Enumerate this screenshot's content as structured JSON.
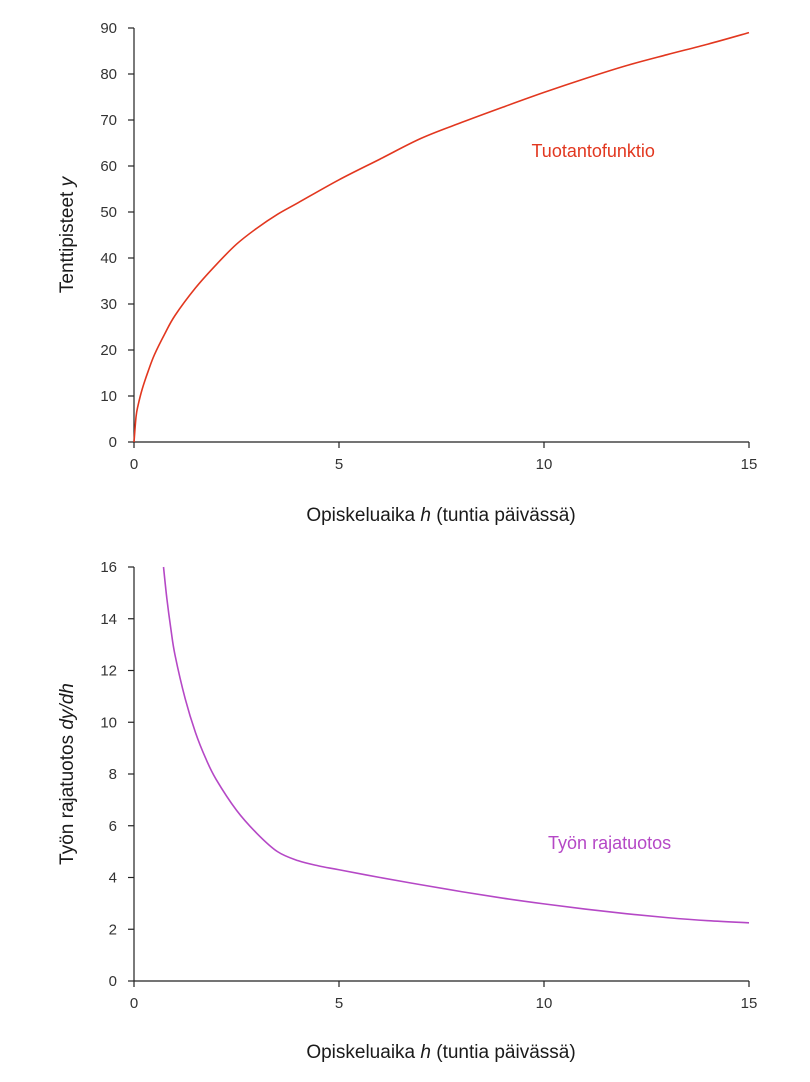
{
  "chart_data": [
    {
      "type": "line",
      "xlabel_prefix": "Opiskeluaika ",
      "xlabel_var": "h",
      "xlabel_suffix": " (tuntia päivässä)",
      "ylabel_prefix": "Tenttipisteet ",
      "ylabel_var": "y",
      "ylabel_suffix": "",
      "xlim": [
        0,
        15
      ],
      "ylim": [
        0,
        90
      ],
      "xticks": [
        0,
        5,
        10,
        15
      ],
      "yticks": [
        0,
        10,
        20,
        30,
        40,
        50,
        60,
        70,
        80,
        90
      ],
      "series": [
        {
          "name": "Tuotantofunktio",
          "color": "#e2371f",
          "x": [
            0,
            0.05,
            0.1,
            0.2,
            0.35,
            0.5,
            0.75,
            1,
            1.5,
            2,
            2.5,
            3,
            3.5,
            4,
            5,
            6,
            7,
            8,
            9,
            10,
            11,
            12,
            13,
            14,
            15
          ],
          "y": [
            0,
            5.5,
            8,
            11.5,
            15.5,
            19,
            23.5,
            27.5,
            33.5,
            38.5,
            43,
            46.5,
            49.5,
            52,
            57,
            61.5,
            66,
            69.5,
            72.8,
            76,
            79,
            81.8,
            84.2,
            86.5,
            89
          ]
        }
      ],
      "annotations": [
        {
          "text": "Tuotantofunktio",
          "x": 11.2,
          "y": 62
        }
      ]
    },
    {
      "type": "line",
      "xlabel_prefix": "Opiskeluaika ",
      "xlabel_var": "h",
      "xlabel_suffix": " (tuntia päivässä)",
      "ylabel_prefix": "Työn rajatuotos ",
      "ylabel_var": "dy/dh",
      "ylabel_suffix": "",
      "xlim": [
        0,
        15
      ],
      "ylim": [
        0,
        16
      ],
      "xticks": [
        0,
        5,
        10,
        15
      ],
      "yticks": [
        0,
        2,
        4,
        6,
        8,
        10,
        12,
        14,
        16
      ],
      "series": [
        {
          "name": "Työn rajatuotos",
          "color": "#b548c6",
          "x": [
            0.72,
            0.8,
            0.9,
            1,
            1.25,
            1.5,
            1.75,
            2,
            2.5,
            3,
            3.5,
            4,
            4.5,
            5,
            6,
            7,
            8,
            9,
            10,
            11,
            12,
            13,
            14,
            15
          ],
          "y": [
            16,
            14.8,
            13.6,
            12.6,
            10.9,
            9.6,
            8.6,
            7.8,
            6.6,
            5.7,
            5.0,
            4.65,
            4.45,
            4.3,
            4.0,
            3.72,
            3.45,
            3.2,
            2.98,
            2.78,
            2.6,
            2.45,
            2.33,
            2.25
          ]
        }
      ],
      "annotations": [
        {
          "text": "Työn rajatuotos",
          "x": 11.6,
          "y": 5.1
        }
      ]
    }
  ]
}
